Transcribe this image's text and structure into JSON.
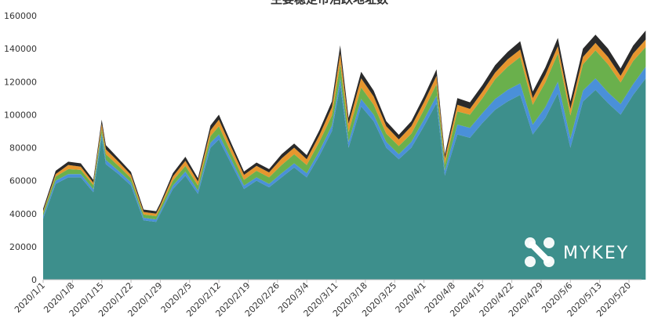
{
  "chart_data": {
    "type": "area",
    "stacked": true,
    "title": "主要稳定币活跃地址数",
    "xlabel": "",
    "ylabel": "",
    "ylim": [
      0,
      160000
    ],
    "yticks": [
      0,
      20000,
      40000,
      60000,
      80000,
      100000,
      120000,
      140000,
      160000
    ],
    "xticks": [
      "2020/1/1",
      "2020/1/8",
      "2020/1/15",
      "2020/1/22",
      "2020/1/29",
      "2020/2/5",
      "2020/2/12",
      "2020/2/19",
      "2020/2/26",
      "2020/3/4",
      "2020/3/11",
      "2020/3/18",
      "2020/3/25",
      "2020/4/1",
      "2020/4/8",
      "2020/4/15",
      "2020/4/22",
      "2020/4/29",
      "2020/5/6",
      "2020/5/13",
      "2020/5/20"
    ],
    "grid": false,
    "legend": "none",
    "colors": {
      "teal": "#3d8f8c",
      "blue": "#4a90d9",
      "green": "#6ab04c",
      "orange": "#e6962e",
      "dark": "#2a2a2a"
    },
    "x": [
      "2020/1/1",
      "2020/1/4",
      "2020/1/7",
      "2020/1/10",
      "2020/1/13",
      "2020/1/15",
      "2020/1/16",
      "2020/1/19",
      "2020/1/22",
      "2020/1/25",
      "2020/1/28",
      "2020/1/29",
      "2020/2/1",
      "2020/2/4",
      "2020/2/7",
      "2020/2/10",
      "2020/2/12",
      "2020/2/15",
      "2020/2/18",
      "2020/2/21",
      "2020/2/24",
      "2020/2/27",
      "2020/3/1",
      "2020/3/4",
      "2020/3/7",
      "2020/3/10",
      "2020/3/12",
      "2020/3/14",
      "2020/3/17",
      "2020/3/20",
      "2020/3/23",
      "2020/3/26",
      "2020/3/29",
      "2020/4/1",
      "2020/4/4",
      "2020/4/6",
      "2020/4/9",
      "2020/4/12",
      "2020/4/15",
      "2020/4/18",
      "2020/4/21",
      "2020/4/24",
      "2020/4/27",
      "2020/4/30",
      "2020/5/3",
      "2020/5/6",
      "2020/5/9",
      "2020/5/12",
      "2020/5/15",
      "2020/5/18",
      "2020/5/21",
      "2020/5/24"
    ],
    "series": [
      {
        "color": "teal",
        "values": [
          37000,
          58000,
          62000,
          62000,
          53000,
          86000,
          70000,
          64000,
          57000,
          36000,
          35000,
          40000,
          55000,
          63000,
          52000,
          80000,
          85000,
          70000,
          55000,
          60000,
          56000,
          62000,
          68000,
          62000,
          75000,
          90000,
          118000,
          80000,
          105000,
          96000,
          80000,
          73000,
          80000,
          93000,
          107000,
          63000,
          88000,
          86000,
          95000,
          103000,
          108000,
          112000,
          88000,
          98000,
          113000,
          80000,
          108000,
          115000,
          107000,
          100000,
          112000,
          122000
        ]
      },
      {
        "color": "blue",
        "values": [
          1500,
          2000,
          2000,
          2000,
          1800,
          2500,
          2500,
          2000,
          2000,
          1500,
          1500,
          1500,
          2000,
          2500,
          2000,
          3000,
          3000,
          2500,
          2000,
          2000,
          2000,
          2500,
          2500,
          2500,
          3000,
          3500,
          4000,
          3500,
          4500,
          4000,
          3500,
          3000,
          3500,
          4000,
          4500,
          3000,
          6000,
          6000,
          6000,
          6500,
          7000,
          7000,
          6000,
          6500,
          7000,
          5500,
          6500,
          7000,
          6500,
          6500,
          6500,
          7000
        ]
      },
      {
        "color": "green",
        "values": [
          2000,
          2500,
          3000,
          2500,
          2500,
          3000,
          3500,
          3000,
          2500,
          2000,
          2000,
          2000,
          3000,
          3500,
          3000,
          4000,
          5000,
          4000,
          3500,
          4000,
          4000,
          5000,
          5500,
          5000,
          5500,
          6000,
          9000,
          6000,
          7000,
          6000,
          5000,
          5000,
          5000,
          6000,
          7000,
          4000,
          8000,
          8000,
          9000,
          12000,
          14000,
          16000,
          12000,
          15000,
          17000,
          14000,
          16000,
          17000,
          17000,
          13000,
          14000,
          12000
        ]
      },
      {
        "color": "orange",
        "values": [
          1000,
          1500,
          2500,
          2000,
          1500,
          3000,
          3000,
          2500,
          2000,
          1500,
          1500,
          1500,
          2500,
          3000,
          2500,
          3500,
          4000,
          3500,
          3000,
          3000,
          3000,
          4000,
          4000,
          3500,
          4000,
          5000,
          6000,
          5000,
          5500,
          5000,
          4500,
          4000,
          4500,
          4500,
          5000,
          3500,
          4000,
          3500,
          4000,
          4000,
          4500,
          4500,
          4000,
          4500,
          4500,
          4000,
          4500,
          4500,
          4500,
          4000,
          4500,
          4500
        ]
      },
      {
        "color": "dark",
        "values": [
          1500,
          2000,
          2000,
          2000,
          1700,
          2500,
          2500,
          2000,
          1800,
          1500,
          1500,
          1500,
          2000,
          2500,
          2000,
          3000,
          3000,
          2500,
          2000,
          2000,
          2000,
          2500,
          2500,
          2500,
          3000,
          3500,
          5000,
          3500,
          4000,
          3500,
          3000,
          2800,
          3000,
          3500,
          4000,
          2500,
          4000,
          4000,
          4000,
          4500,
          4500,
          5000,
          4000,
          4500,
          5000,
          4500,
          5000,
          5000,
          5000,
          4500,
          4800,
          5500
        ]
      }
    ]
  },
  "watermark": {
    "brand": "MYKEY",
    "logo_icon": "mykey-logo-icon"
  }
}
